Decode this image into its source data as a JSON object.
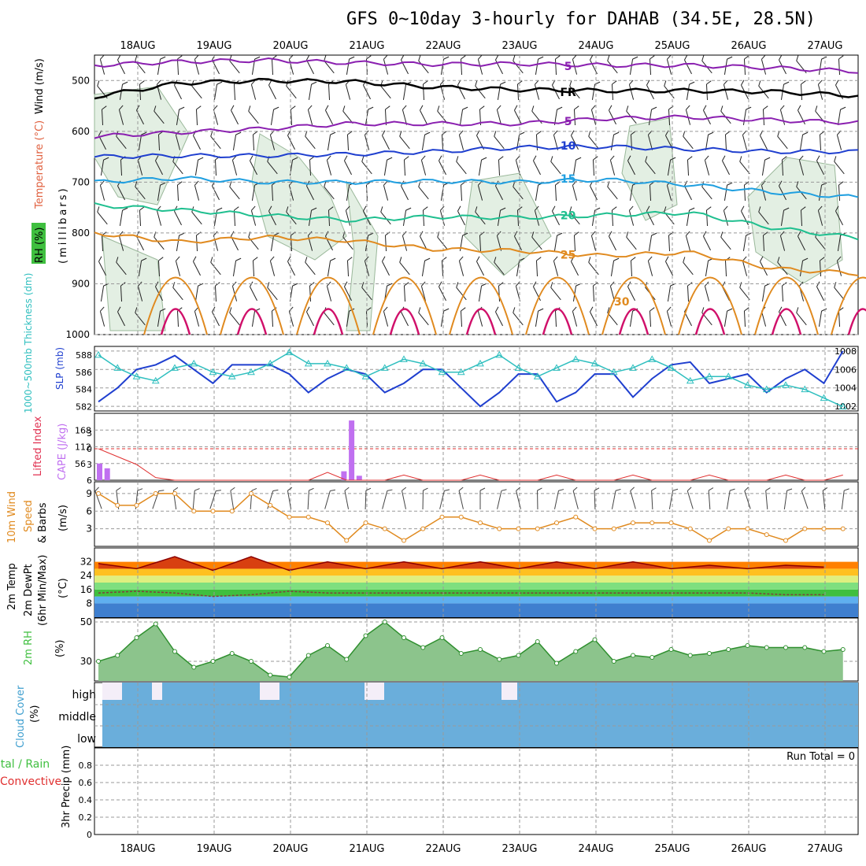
{
  "header": {
    "title": "GFS 0~10day 3-hourly for DAHAB (34.5E, 28.5N)"
  },
  "dates": [
    "18AUG",
    "19AUG",
    "20AUG",
    "21AUG",
    "22AUG",
    "23AUG",
    "24AUG",
    "25AUG",
    "26AUG",
    "27AUG"
  ],
  "colors": {
    "grid": "#999999",
    "rh_fill": "#e3efe3",
    "temp_purple": "#8a1fb0",
    "temp_blue": "#1f3fcf",
    "temp_lightblue": "#1f9fe0",
    "temp_green": "#1fbf8f",
    "temp_orange": "#e08a1f",
    "temp_magenta": "#d0106a",
    "slp": "#1f3fcf",
    "thickness": "#2fbfbf",
    "cape": "#c070f0",
    "lifted_index": "#e03030",
    "wind_speed": "#e08a1f",
    "rh2m": "#8cc48c",
    "cloud": "#6aaedb"
  },
  "panel_labels": {
    "upper": {
      "rh": "RH (%)",
      "temperature": "Temperature (°C)",
      "wind": "Wind (m/s)",
      "pressure": "(millibars)"
    },
    "slp": {
      "thickness": "1000~500mb Thickness (dm)",
      "slp": "SLP (mb)"
    },
    "cape": {
      "lifted_index": "Lifted Index",
      "cape": "CAPE (J/kg)"
    },
    "wind10": {
      "line1": "10m Wind",
      "line2": "Speed",
      "line3": "& Barbs",
      "unit": "(m/s)"
    },
    "temp2m": {
      "line1": "2m Temp",
      "line2": "2m DewPt",
      "line3": "(6hr Min/Max)",
      "unit": "(°C)"
    },
    "rh2m": {
      "name": "2m RH",
      "unit": "(%)"
    },
    "cloud": {
      "name": "Cloud Cover",
      "unit": "(%)",
      "high": "high",
      "middle": "middle",
      "low": "low"
    },
    "precip": {
      "total": "Total / Rain",
      "convective": "Convective",
      "name": "3hr Precip (mm)",
      "run_total": "Run Total = 0"
    }
  },
  "contour_labels": {
    "fr": "FR",
    "t5": "5",
    "t10": "10",
    "t15": "15",
    "t20": "20",
    "t25": "25",
    "t30": "30",
    "rh30": "30"
  },
  "chart_data": [
    {
      "type": "line",
      "panel": "upper-air",
      "y_axis": {
        "label": "millibars",
        "ticks": [
          500,
          600,
          700,
          800,
          900,
          1000
        ],
        "range": [
          450,
          1000
        ],
        "inverted": true
      },
      "x": [
        "18AUG",
        "19AUG",
        "20AUG",
        "21AUG",
        "22AUG",
        "23AUG",
        "24AUG",
        "25AUG",
        "26AUG",
        "27AUG"
      ],
      "series": [
        {
          "name": "5",
          "values": [
            470,
            463,
            460,
            465,
            468,
            467,
            470,
            470,
            475,
            482
          ]
        },
        {
          "name": "FR",
          "values": [
            532,
            505,
            500,
            502,
            513,
            518,
            520,
            520,
            522,
            530
          ]
        },
        {
          "name": "5",
          "values": [
            610,
            602,
            595,
            585,
            585,
            585,
            575,
            572,
            578,
            583
          ]
        },
        {
          "name": "10",
          "values": [
            650,
            648,
            648,
            645,
            640,
            632,
            630,
            635,
            640,
            640
          ]
        },
        {
          "name": "15",
          "values": [
            700,
            692,
            700,
            700,
            698,
            700,
            695,
            705,
            720,
            730
          ]
        },
        {
          "name": "20",
          "values": [
            745,
            755,
            765,
            775,
            768,
            770,
            765,
            760,
            790,
            810
          ]
        },
        {
          "name": "25",
          "values": [
            800,
            818,
            808,
            815,
            832,
            835,
            845,
            838,
            870,
            880
          ]
        }
      ]
    },
    {
      "type": "line",
      "panel": "slp-thickness",
      "y_left": {
        "label": "1000~500mb Thickness (dm)",
        "ticks": [
          582,
          584,
          586,
          588
        ]
      },
      "y_right": {
        "label": "SLP (mb)",
        "ticks": [
          1002,
          1004,
          1006,
          1008
        ]
      },
      "x": [
        0,
        0.25,
        0.5,
        0.75,
        1,
        1.25,
        1.5,
        1.75,
        2,
        2.25,
        2.5,
        2.75,
        3,
        3.25,
        3.5,
        3.75,
        4,
        4.25,
        4.5,
        4.75,
        5,
        5.25,
        5.5,
        5.75,
        6,
        6.25,
        6.5,
        6.75,
        7,
        7.25,
        7.5,
        7.75,
        8,
        8.25,
        8.5,
        8.75,
        9,
        9.25,
        9.5,
        9.75
      ],
      "series": [
        {
          "name": "SLP (mb)",
          "values": [
            1002.5,
            1004,
            1006,
            1006.5,
            1007.5,
            1006,
            1004.5,
            1006.5,
            1006.5,
            1006.5,
            1005.5,
            1003.5,
            1005,
            1006,
            1005.5,
            1003.5,
            1004.5,
            1006,
            1006,
            1004,
            1002,
            1003.5,
            1005.5,
            1005.5,
            1002.5,
            1003.5,
            1005.5,
            1005.5,
            1003,
            1005,
            1006.5,
            1006.8,
            1004.5,
            1005,
            1005.5,
            1003.5,
            1005,
            1006,
            1004.5,
            1008
          ]
        },
        {
          "name": "1000~500mb Thickness (dm)",
          "values": [
            588,
            586.5,
            585.5,
            585,
            586.5,
            587,
            586,
            585.5,
            586,
            587,
            588.3,
            587,
            587,
            586.5,
            585.5,
            586.5,
            587.5,
            587,
            586,
            586,
            587,
            588,
            586.5,
            585.5,
            586.5,
            587.5,
            587,
            586,
            586.5,
            587.5,
            586.5,
            585,
            585.5,
            585.5,
            584.5,
            584,
            584.5,
            584,
            583,
            582
          ]
        }
      ]
    },
    {
      "type": "bar",
      "panel": "cape-lifted-index",
      "y_left": {
        "label": "Lifted Index",
        "ticks": [
          -3,
          0,
          3,
          6
        ]
      },
      "y_right": {
        "label": "CAPE (J/kg)",
        "ticks": [
          56,
          112,
          168
        ]
      },
      "cape_bars": [
        {
          "x": 0,
          "value": 56
        },
        {
          "x": 0.1,
          "value": 40
        },
        {
          "x": 3.2,
          "value": 30
        },
        {
          "x": 3.3,
          "value": 200
        },
        {
          "x": 3.4,
          "value": 15
        }
      ],
      "series": [
        {
          "name": "Lifted Index",
          "values": [
            0,
            1.5,
            3,
            5.5,
            6,
            6,
            6,
            6,
            6,
            6,
            6,
            6,
            4.5,
            6,
            6,
            6,
            5,
            6,
            6,
            6,
            5,
            6,
            6,
            6,
            5,
            6,
            6,
            6,
            5,
            6,
            6,
            6,
            5,
            6,
            6,
            6,
            5,
            6,
            6,
            5
          ]
        }
      ]
    },
    {
      "type": "line",
      "panel": "10m-wind",
      "y_axis": {
        "label": "(m/s)",
        "ticks": [
          3,
          6,
          9
        ],
        "range": [
          0,
          11
        ]
      },
      "x": [
        0,
        0.25,
        0.5,
        0.75,
        1,
        1.25,
        1.5,
        1.75,
        2,
        2.25,
        2.5,
        2.75,
        3,
        3.25,
        3.5,
        3.75,
        4,
        4.25,
        4.5,
        4.75,
        5,
        5.25,
        5.5,
        5.75,
        6,
        6.25,
        6.5,
        6.75,
        7,
        7.25,
        7.5,
        7.75,
        8,
        8.25,
        8.5,
        8.75,
        9,
        9.25,
        9.5,
        9.75
      ],
      "series": [
        {
          "name": "10m Wind Speed",
          "values": [
            9,
            7,
            7,
            9,
            9,
            6,
            6,
            6,
            9,
            7,
            5,
            5,
            4,
            1,
            4,
            3,
            1,
            3,
            5,
            5,
            4,
            3,
            3,
            3,
            4,
            5,
            3,
            3,
            4,
            4,
            4,
            3,
            1,
            3,
            3,
            2,
            1,
            3,
            3,
            3
          ]
        }
      ]
    },
    {
      "type": "area",
      "panel": "2m-temp",
      "y_axis": {
        "label": "(°C)",
        "ticks": [
          8,
          16,
          24,
          32
        ],
        "range": [
          0,
          40
        ]
      },
      "x": [
        0,
        0.5,
        1,
        1.5,
        2,
        2.5,
        3,
        3.5,
        4,
        4.5,
        5,
        5.5,
        6,
        6.5,
        7,
        7.5,
        8,
        8.5,
        9,
        9.5
      ],
      "series": [
        {
          "name": "2m Temp",
          "values": [
            31,
            28,
            35,
            27,
            35,
            27,
            32,
            28,
            32,
            28,
            32,
            28,
            32,
            28,
            32,
            28,
            30,
            28,
            30,
            29
          ]
        },
        {
          "name": "2m DewPt",
          "values": [
            14,
            15,
            14,
            12,
            13,
            15,
            14,
            14,
            14,
            14,
            14,
            14,
            14,
            14,
            14,
            14,
            14,
            14,
            13,
            13
          ]
        }
      ]
    },
    {
      "type": "area",
      "panel": "2m-rh",
      "y_axis": {
        "label": "(%)",
        "ticks": [
          30,
          50
        ],
        "range": [
          20,
          52
        ]
      },
      "x": [
        0,
        0.25,
        0.5,
        0.75,
        1,
        1.25,
        1.5,
        1.75,
        2,
        2.25,
        2.5,
        2.75,
        3,
        3.25,
        3.5,
        3.75,
        4,
        4.25,
        4.5,
        4.75,
        5,
        5.25,
        5.5,
        5.75,
        6,
        6.25,
        6.5,
        6.75,
        7,
        7.25,
        7.5,
        7.75,
        8,
        8.25,
        8.5,
        8.75,
        9,
        9.25,
        9.5,
        9.75
      ],
      "series": [
        {
          "name": "2m RH",
          "values": [
            30,
            33,
            42,
            49,
            35,
            27,
            30,
            34,
            30,
            23,
            22,
            33,
            38,
            31,
            43,
            50,
            42,
            37,
            42,
            34,
            36,
            31,
            33,
            40,
            29,
            35,
            41,
            30,
            33,
            32,
            36,
            33,
            34,
            36,
            38,
            37,
            37,
            37,
            35,
            36
          ]
        }
      ]
    },
    {
      "type": "bar",
      "panel": "cloud-cover",
      "categories": [
        "high",
        "middle",
        "low"
      ],
      "y_axis": {
        "label": "(%)"
      }
    },
    {
      "type": "bar",
      "panel": "3hr-precip",
      "y_axis": {
        "label": "3hr Precip (mm)",
        "ticks": [
          0,
          0.2,
          0.4,
          0.6,
          0.8
        ],
        "range": [
          0,
          1
        ]
      },
      "values": []
    }
  ]
}
